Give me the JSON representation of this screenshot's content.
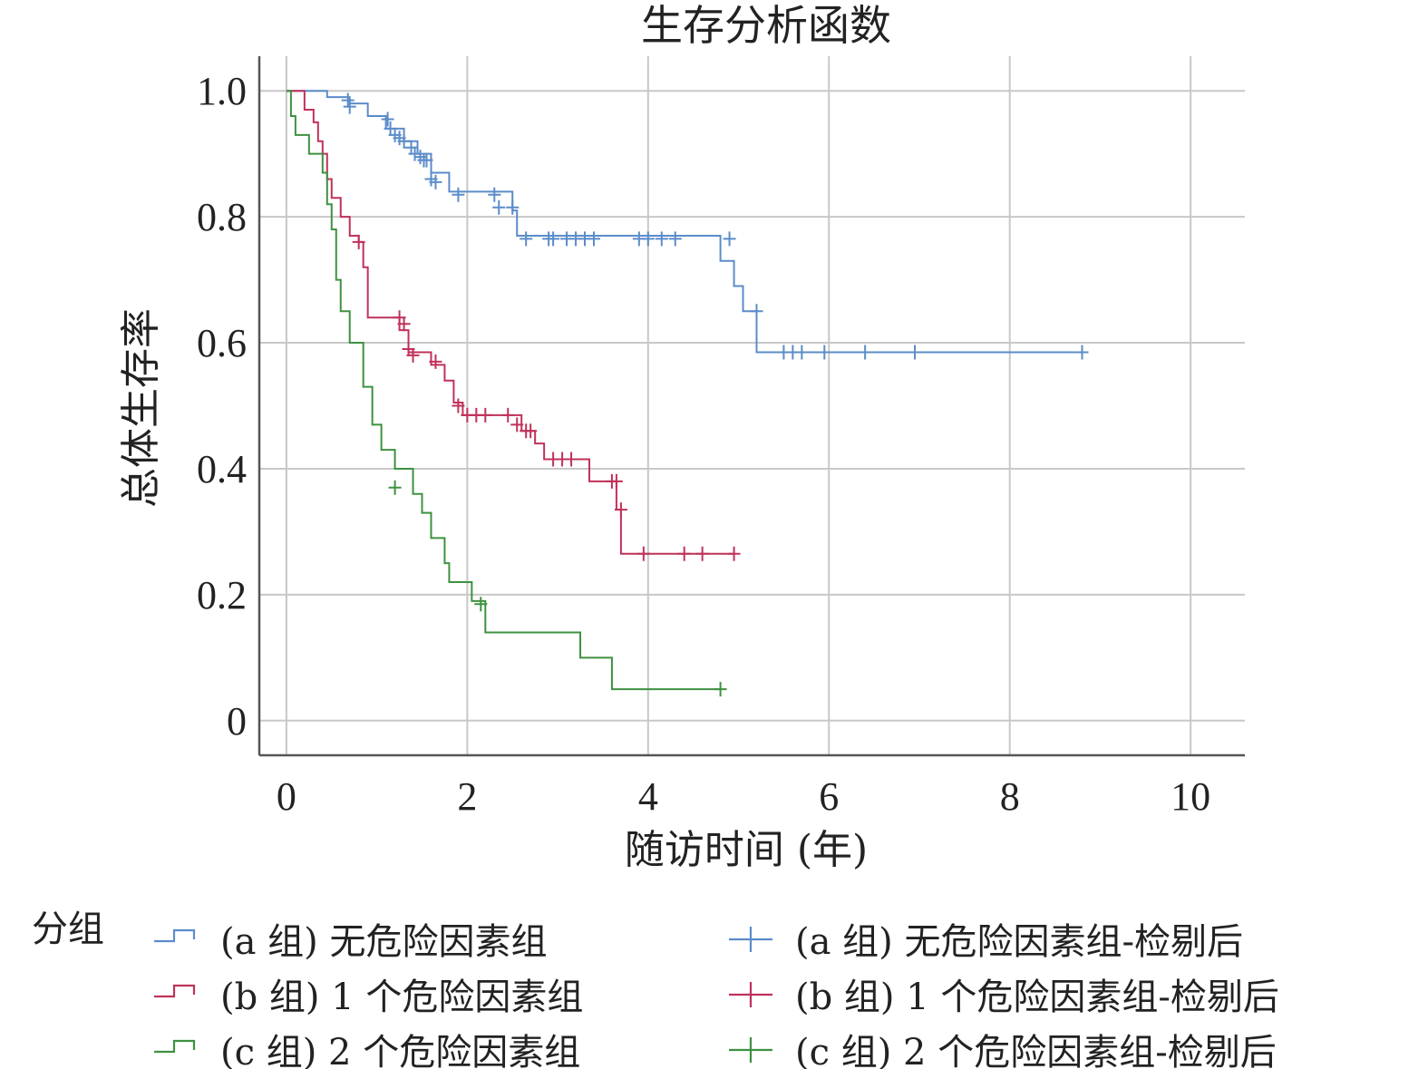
{
  "chart_data": {
    "type": "line",
    "title": "生存分析函数",
    "xlabel": "随访时间 (年)",
    "ylabel": "总体生存率",
    "xlim": [
      -0.3,
      10.6
    ],
    "ylim": [
      -0.055,
      1.055
    ],
    "x_ticks": [
      0,
      2,
      4,
      6,
      8,
      10
    ],
    "x_tick_labels": [
      "0",
      "2",
      "4",
      "6",
      "8",
      "10"
    ],
    "y_ticks": [
      0,
      0.2,
      0.4,
      0.6,
      0.8,
      1.0
    ],
    "y_tick_labels": [
      "0",
      "0.2",
      "0.4",
      "0.6",
      "0.8",
      "1.0"
    ],
    "grid": true,
    "legend_title": "分组",
    "legend_position": "bottom",
    "series": [
      {
        "name": "(a 组) 无危险因素组",
        "censor_name": "(a 组) 无危险因素组-检剔后",
        "color": "#5b8cc9",
        "steps": [
          [
            0,
            1.0
          ],
          [
            0.45,
            0.99
          ],
          [
            0.7,
            0.98
          ],
          [
            0.9,
            0.96
          ],
          [
            1.1,
            0.94
          ],
          [
            1.3,
            0.92
          ],
          [
            1.45,
            0.9
          ],
          [
            1.6,
            0.87
          ],
          [
            1.8,
            0.84
          ],
          [
            2.5,
            0.81
          ],
          [
            2.55,
            0.77
          ],
          [
            4.8,
            0.73
          ],
          [
            4.95,
            0.69
          ],
          [
            5.05,
            0.65
          ],
          [
            5.2,
            0.585
          ],
          [
            8.8,
            0.585
          ]
        ],
        "censored": [
          [
            0.68,
            0.985
          ],
          [
            0.7,
            0.975
          ],
          [
            1.12,
            0.955
          ],
          [
            1.15,
            0.94
          ],
          [
            1.2,
            0.93
          ],
          [
            1.25,
            0.925
          ],
          [
            1.3,
            0.92
          ],
          [
            1.38,
            0.91
          ],
          [
            1.42,
            0.9
          ],
          [
            1.48,
            0.895
          ],
          [
            1.52,
            0.89
          ],
          [
            1.55,
            0.89
          ],
          [
            1.6,
            0.86
          ],
          [
            1.65,
            0.855
          ],
          [
            1.9,
            0.835
          ],
          [
            2.3,
            0.835
          ],
          [
            2.35,
            0.815
          ],
          [
            2.5,
            0.815
          ],
          [
            2.65,
            0.765
          ],
          [
            2.9,
            0.765
          ],
          [
            2.95,
            0.765
          ],
          [
            3.1,
            0.765
          ],
          [
            3.2,
            0.765
          ],
          [
            3.3,
            0.765
          ],
          [
            3.4,
            0.765
          ],
          [
            3.9,
            0.765
          ],
          [
            4.0,
            0.765
          ],
          [
            4.15,
            0.765
          ],
          [
            4.3,
            0.765
          ],
          [
            4.9,
            0.765
          ],
          [
            5.2,
            0.65
          ],
          [
            5.5,
            0.585
          ],
          [
            5.6,
            0.585
          ],
          [
            5.7,
            0.585
          ],
          [
            5.95,
            0.585
          ],
          [
            6.4,
            0.585
          ],
          [
            6.95,
            0.585
          ],
          [
            8.8,
            0.585
          ]
        ]
      },
      {
        "name": "(b 组) 1 个危险因素组",
        "censor_name": "(b 组) 1 个危险因素组-检剔后",
        "color": "#c0325a",
        "steps": [
          [
            0,
            1.0
          ],
          [
            0.2,
            0.97
          ],
          [
            0.3,
            0.95
          ],
          [
            0.35,
            0.92
          ],
          [
            0.4,
            0.9
          ],
          [
            0.45,
            0.86
          ],
          [
            0.5,
            0.83
          ],
          [
            0.6,
            0.8
          ],
          [
            0.7,
            0.77
          ],
          [
            0.8,
            0.76
          ],
          [
            0.85,
            0.72
          ],
          [
            0.9,
            0.64
          ],
          [
            1.25,
            0.62
          ],
          [
            1.35,
            0.585
          ],
          [
            1.6,
            0.565
          ],
          [
            1.75,
            0.54
          ],
          [
            1.85,
            0.505
          ],
          [
            1.95,
            0.485
          ],
          [
            2.6,
            0.46
          ],
          [
            2.75,
            0.44
          ],
          [
            2.85,
            0.415
          ],
          [
            3.35,
            0.38
          ],
          [
            3.65,
            0.335
          ],
          [
            3.7,
            0.265
          ],
          [
            4.95,
            0.265
          ]
        ],
        "censored": [
          [
            0.8,
            0.76
          ],
          [
            1.25,
            0.64
          ],
          [
            1.3,
            0.63
          ],
          [
            1.35,
            0.59
          ],
          [
            1.4,
            0.58
          ],
          [
            1.65,
            0.57
          ],
          [
            1.9,
            0.5
          ],
          [
            2.0,
            0.485
          ],
          [
            2.1,
            0.485
          ],
          [
            2.2,
            0.485
          ],
          [
            2.45,
            0.485
          ],
          [
            2.55,
            0.47
          ],
          [
            2.65,
            0.46
          ],
          [
            2.7,
            0.46
          ],
          [
            2.95,
            0.415
          ],
          [
            3.05,
            0.415
          ],
          [
            3.15,
            0.415
          ],
          [
            3.6,
            0.38
          ],
          [
            3.65,
            0.38
          ],
          [
            3.7,
            0.335
          ],
          [
            3.95,
            0.265
          ],
          [
            4.4,
            0.265
          ],
          [
            4.6,
            0.265
          ],
          [
            4.95,
            0.265
          ]
        ]
      },
      {
        "name": "(c 组) 2 个危险因素组",
        "censor_name": "(c 组) 2 个危险因素组-检剔后",
        "color": "#3e9140",
        "steps": [
          [
            0,
            1.0
          ],
          [
            0.05,
            0.96
          ],
          [
            0.1,
            0.93
          ],
          [
            0.25,
            0.9
          ],
          [
            0.4,
            0.87
          ],
          [
            0.45,
            0.82
          ],
          [
            0.5,
            0.78
          ],
          [
            0.55,
            0.7
          ],
          [
            0.6,
            0.65
          ],
          [
            0.7,
            0.6
          ],
          [
            0.85,
            0.53
          ],
          [
            0.95,
            0.47
          ],
          [
            1.05,
            0.43
          ],
          [
            1.2,
            0.4
          ],
          [
            1.4,
            0.36
          ],
          [
            1.5,
            0.33
          ],
          [
            1.6,
            0.29
          ],
          [
            1.75,
            0.25
          ],
          [
            1.8,
            0.22
          ],
          [
            2.05,
            0.19
          ],
          [
            2.2,
            0.14
          ],
          [
            3.25,
            0.1
          ],
          [
            3.6,
            0.05
          ],
          [
            4.8,
            0.05
          ]
        ],
        "censored": [
          [
            1.2,
            0.37
          ],
          [
            2.15,
            0.185
          ],
          [
            4.8,
            0.05
          ]
        ]
      }
    ]
  }
}
